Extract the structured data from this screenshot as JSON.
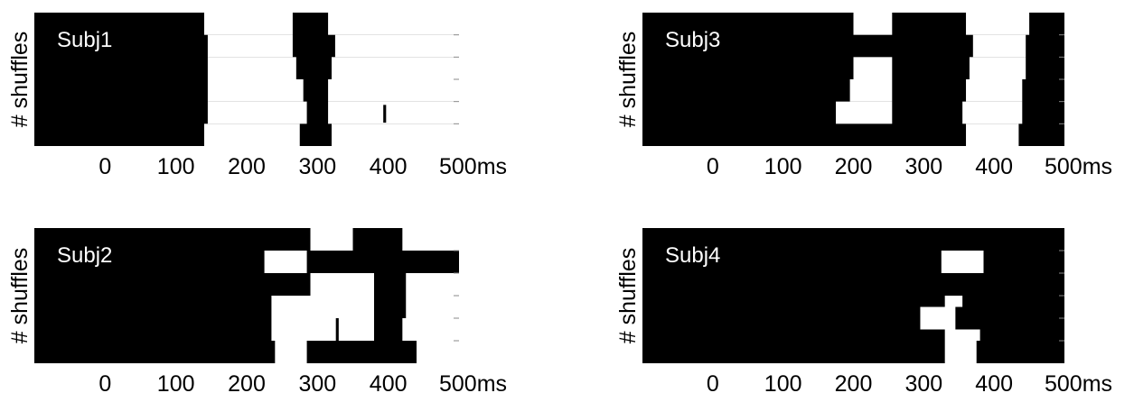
{
  "chart_data": [
    {
      "type": "heatmap",
      "title": "Subj1",
      "ylabel": "# shuffles",
      "xlim": [
        -100,
        500
      ],
      "ylim": [
        0,
        6
      ],
      "x_ticks": [
        0,
        100,
        200,
        300,
        400,
        500
      ],
      "x_tick_labels": [
        "0",
        "100",
        "200",
        "300",
        "400",
        "500ms"
      ],
      "colors": {
        "background": "#000000",
        "highlight": "#ffffff"
      },
      "white_regions": [
        {
          "x0": 140,
          "x1": 265,
          "y0": 0,
          "y1": 1
        },
        {
          "x0": 145,
          "x1": 265,
          "y0": 1,
          "y1": 2
        },
        {
          "x0": 145,
          "x1": 270,
          "y0": 2,
          "y1": 3
        },
        {
          "x0": 145,
          "x1": 280,
          "y0": 3,
          "y1": 4
        },
        {
          "x0": 145,
          "x1": 285,
          "y0": 4,
          "y1": 5
        },
        {
          "x0": 140,
          "x1": 275,
          "y0": 5,
          "y1": 6
        },
        {
          "x0": 315,
          "x1": 500,
          "y0": 0,
          "y1": 1
        },
        {
          "x0": 325,
          "x1": 500,
          "y0": 1,
          "y1": 2
        },
        {
          "x0": 320,
          "x1": 500,
          "y0": 2,
          "y1": 3
        },
        {
          "x0": 315,
          "x1": 500,
          "y0": 3,
          "y1": 4
        },
        {
          "x0": 315,
          "x1": 500,
          "y0": 4,
          "y1": 5
        },
        {
          "x0": 320,
          "x1": 500,
          "y0": 5,
          "y1": 6
        }
      ],
      "black_marks": [
        {
          "x0": 393,
          "x1": 397,
          "y0": 4.15,
          "y1": 4.95
        }
      ]
    },
    {
      "type": "heatmap",
      "title": "Subj3",
      "ylabel": "# shuffles",
      "xlim": [
        -100,
        500
      ],
      "ylim": [
        0,
        6
      ],
      "x_ticks": [
        0,
        100,
        200,
        300,
        400,
        500
      ],
      "x_tick_labels": [
        "0",
        "100",
        "200",
        "300",
        "400",
        "500ms"
      ],
      "colors": {
        "background": "#000000",
        "highlight": "#ffffff"
      },
      "white_regions": [
        {
          "x0": 200,
          "x1": 255,
          "y0": 0,
          "y1": 1
        },
        {
          "x0": 200,
          "x1": 255,
          "y0": 2,
          "y1": 3
        },
        {
          "x0": 195,
          "x1": 255,
          "y0": 3,
          "y1": 4
        },
        {
          "x0": 175,
          "x1": 255,
          "y0": 4,
          "y1": 5
        },
        {
          "x0": 360,
          "x1": 450,
          "y0": 0,
          "y1": 1
        },
        {
          "x0": 370,
          "x1": 445,
          "y0": 1,
          "y1": 2
        },
        {
          "x0": 365,
          "x1": 445,
          "y0": 2,
          "y1": 3
        },
        {
          "x0": 360,
          "x1": 440,
          "y0": 3,
          "y1": 4
        },
        {
          "x0": 355,
          "x1": 440,
          "y0": 4,
          "y1": 5
        },
        {
          "x0": 360,
          "x1": 435,
          "y0": 5,
          "y1": 6
        }
      ],
      "black_marks": []
    },
    {
      "type": "heatmap",
      "title": "Subj2",
      "ylabel": "# shuffles",
      "xlim": [
        -100,
        500
      ],
      "ylim": [
        0,
        6
      ],
      "x_ticks": [
        0,
        100,
        200,
        300,
        400,
        500
      ],
      "x_tick_labels": [
        "0",
        "100",
        "200",
        "300",
        "400",
        "500ms"
      ],
      "colors": {
        "background": "#000000",
        "highlight": "#ffffff"
      },
      "white_regions": [
        {
          "x0": 290,
          "x1": 350,
          "y0": 0,
          "y1": 1
        },
        {
          "x0": 420,
          "x1": 500,
          "y0": 0,
          "y1": 1
        },
        {
          "x0": 225,
          "x1": 285,
          "y0": 1,
          "y1": 2
        },
        {
          "x0": 290,
          "x1": 380,
          "y0": 2,
          "y1": 3
        },
        {
          "x0": 425,
          "x1": 500,
          "y0": 2,
          "y1": 3
        },
        {
          "x0": 235,
          "x1": 380,
          "y0": 3,
          "y1": 4
        },
        {
          "x0": 425,
          "x1": 500,
          "y0": 3,
          "y1": 4
        },
        {
          "x0": 235,
          "x1": 380,
          "y0": 4,
          "y1": 5
        },
        {
          "x0": 420,
          "x1": 500,
          "y0": 4,
          "y1": 5
        },
        {
          "x0": 240,
          "x1": 285,
          "y0": 5,
          "y1": 6
        },
        {
          "x0": 440,
          "x1": 500,
          "y0": 5,
          "y1": 6
        }
      ],
      "black_marks": [
        {
          "x0": 326,
          "x1": 330,
          "y0": 4.0,
          "y1": 5.0
        }
      ]
    },
    {
      "type": "heatmap",
      "title": "Subj4",
      "ylabel": "# shuffles",
      "xlim": [
        -100,
        500
      ],
      "ylim": [
        0,
        6
      ],
      "x_ticks": [
        0,
        100,
        200,
        300,
        400,
        500
      ],
      "x_tick_labels": [
        "0",
        "100",
        "200",
        "300",
        "400",
        "500ms"
      ],
      "colors": {
        "background": "#000000",
        "highlight": "#ffffff"
      },
      "white_regions": [
        {
          "x0": 325,
          "x1": 385,
          "y0": 1,
          "y1": 2
        },
        {
          "x0": 330,
          "x1": 355,
          "y0": 3,
          "y1": 3.5
        },
        {
          "x0": 295,
          "x1": 345,
          "y0": 3.5,
          "y1": 4.5
        },
        {
          "x0": 330,
          "x1": 380,
          "y0": 4.5,
          "y1": 5
        },
        {
          "x0": 330,
          "x1": 375,
          "y0": 5,
          "y1": 6
        }
      ],
      "black_marks": []
    }
  ]
}
